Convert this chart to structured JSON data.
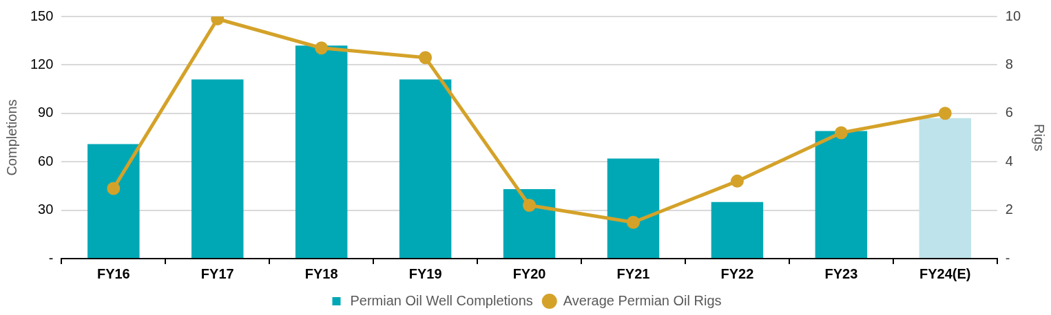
{
  "chart_data": {
    "type": "bar",
    "ylabel": "Completions",
    "y2label": "Rigs",
    "categories": [
      "FY16",
      "FY17",
      "FY18",
      "FY19",
      "FY20",
      "FY21",
      "FY22",
      "FY23",
      "FY24(E)"
    ],
    "series": [
      {
        "name": "Permian Oil Well Completions",
        "color": "#00a8b5",
        "colors": [
          "#00a8b5",
          "#00a8b5",
          "#00a8b5",
          "#00a8b5",
          "#00a8b5",
          "#00a8b5",
          "#00a8b5",
          "#00a8b5",
          "#bfe3ea"
        ],
        "values": [
          71,
          111,
          132,
          111,
          43,
          62,
          35,
          79,
          87
        ]
      },
      {
        "name": "Average Permian Oil Rigs",
        "type": "line",
        "axis": "y2",
        "color": "#d4a229",
        "values": [
          2.9,
          9.9,
          8.7,
          8.3,
          2.2,
          1.5,
          3.2,
          5.2,
          6.0
        ]
      }
    ],
    "ylim": [
      0,
      150
    ],
    "yticks": [
      {
        "value": 0,
        "label": "-"
      },
      30,
      60,
      90,
      120,
      150
    ],
    "y2lim": [
      0,
      10
    ],
    "y2ticks": [
      {
        "value": 0,
        "label": "-"
      },
      2,
      4,
      6,
      8,
      10
    ],
    "grid": "y",
    "legend": "bottom",
    "marker": "circle"
  }
}
